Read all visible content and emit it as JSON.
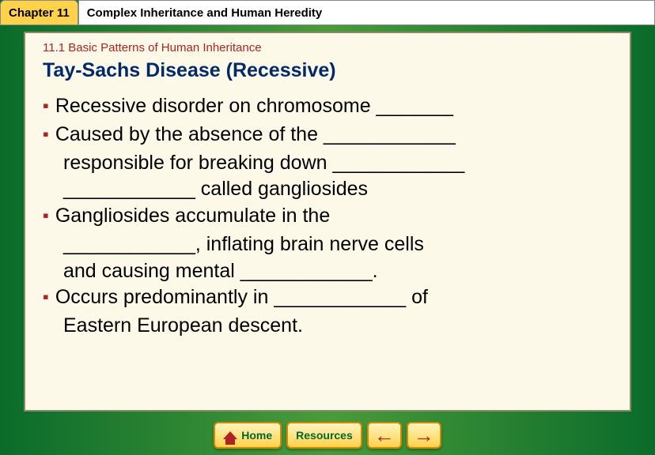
{
  "header": {
    "chapter_label": "Chapter 11",
    "chapter_title": "Complex Inheritance and Human Heredity"
  },
  "section": {
    "number": "11.1 Basic Patterns of Human Inheritance",
    "topic": "Tay-Sachs Disease (Recessive)"
  },
  "bullets": {
    "b1": "Recessive disorder on chromosome _______",
    "b2_l1": "Caused by the absence of the ____________",
    "b2_l2": "responsible for breaking down ____________",
    "b2_l3": "____________ called gangliosides",
    "b3_l1": "Gangliosides accumulate in the",
    "b3_l2": "____________, inflating brain nerve cells",
    "b3_l3": "and causing mental ____________.",
    "b4_l1": "Occurs predominantly in ____________ of",
    "b4_l2": "Eastern European descent."
  },
  "nav": {
    "home": "Home",
    "resources": "Resources"
  },
  "colors": {
    "accent_yellow": "#ffd24a",
    "bullet_red": "#b22222",
    "title_blue": "#022a6b",
    "panel_bg": "#fcf9e8"
  }
}
